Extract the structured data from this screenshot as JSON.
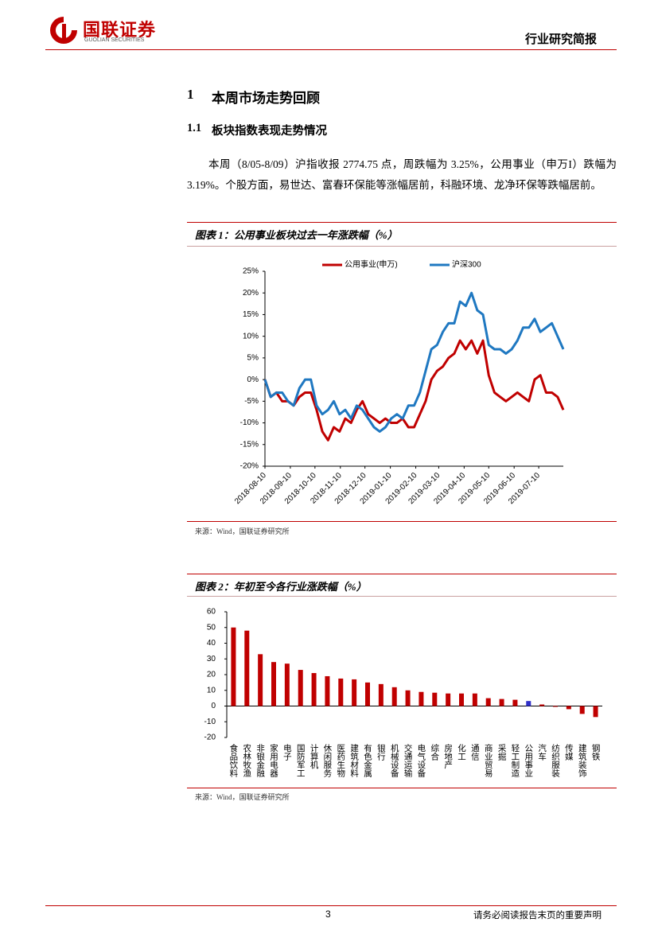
{
  "header": {
    "logo_text": "国联证券",
    "logo_sub": "GUOLIAN SECURITIES",
    "report_type": "行业研究简报"
  },
  "section": {
    "number": "1",
    "title": "本周市场走势回顾"
  },
  "subsection": {
    "number": "1.1",
    "title": "板块指数表现走势情况"
  },
  "paragraph": "本周（8/05-8/09）沪指收报 2774.75 点，周跌幅为 3.25%，公用事业（申万I）跌幅为 3.19%。个股方面，易世达、富春环保能等涨幅居前，科融环境、龙净环保等跌幅居前。",
  "chart_data": [
    {
      "type": "line",
      "title": "图表 1：公用事业板块过去一年涨跌幅（%）",
      "source": "来源：Wind，国联证券研究所",
      "x": [
        "2018-08-10",
        "2018-08-17",
        "2018-08-24",
        "2018-08-31",
        "2018-09-07",
        "2018-09-14",
        "2018-09-21",
        "2018-09-28",
        "2018-10-05",
        "2018-10-12",
        "2018-10-19",
        "2018-10-26",
        "2018-11-02",
        "2018-11-09",
        "2018-11-16",
        "2018-11-23",
        "2018-11-30",
        "2018-12-07",
        "2018-12-14",
        "2018-12-21",
        "2018-12-28",
        "2019-01-04",
        "2019-01-11",
        "2019-01-18",
        "2019-01-25",
        "2019-02-01",
        "2019-02-08",
        "2019-02-15",
        "2019-02-22",
        "2019-03-01",
        "2019-03-08",
        "2019-03-15",
        "2019-03-22",
        "2019-03-29",
        "2019-04-05",
        "2019-04-12",
        "2019-04-19",
        "2019-04-26",
        "2019-05-03",
        "2019-05-10",
        "2019-05-17",
        "2019-05-24",
        "2019-05-31",
        "2019-06-07",
        "2019-06-14",
        "2019-06-21",
        "2019-06-28",
        "2019-07-05",
        "2019-07-12",
        "2019-07-19",
        "2019-07-26",
        "2019-08-02",
        "2019-08-09"
      ],
      "series": [
        {
          "name": "公用事业(申万)",
          "color": "#c00000",
          "values": [
            0,
            -4,
            -3,
            -5,
            -5,
            -6,
            -4,
            -3,
            -3,
            -7,
            -12,
            -14,
            -11,
            -12,
            -9,
            -10,
            -7,
            -5,
            -8,
            -9,
            -10,
            -9,
            -10,
            -10,
            -9,
            -11,
            -11,
            -8,
            -5,
            0,
            2,
            3,
            5,
            6,
            9,
            7,
            9,
            6,
            9,
            1,
            -3,
            -4,
            -5,
            -4,
            -3,
            -4,
            -5,
            0,
            1,
            -3,
            -3,
            -4,
            -7
          ]
        },
        {
          "name": "沪深300",
          "color": "#1f78c1",
          "values": [
            0,
            -4,
            -3,
            -3,
            -5,
            -6,
            -2,
            0,
            0,
            -6,
            -8,
            -7,
            -5,
            -8,
            -7,
            -9,
            -6,
            -7,
            -9,
            -11,
            -12,
            -11,
            -9,
            -8,
            -9,
            -6,
            -6,
            -3,
            2,
            7,
            8,
            11,
            13,
            13,
            18,
            17,
            20,
            16,
            15,
            8,
            7,
            7,
            6,
            7,
            9,
            12,
            12,
            14,
            11,
            12,
            13,
            10,
            7
          ]
        }
      ],
      "xlim": [
        "2018-08-10",
        "2019-08-09"
      ],
      "xticks": [
        "2018-08-10",
        "2018-09-10",
        "2018-10-10",
        "2018-11-10",
        "2018-12-10",
        "2019-01-10",
        "2019-02-10",
        "2019-03-10",
        "2019-04-10",
        "2019-05-10",
        "2019-06-10",
        "2019-07-10"
      ],
      "ylim": [
        -20,
        25
      ],
      "yticks": [
        {
          "value": -20,
          "label": "-20%"
        },
        {
          "value": -15,
          "label": "-15%"
        },
        {
          "value": -10,
          "label": "-10%"
        },
        {
          "value": -5,
          "label": "-5%"
        },
        {
          "value": 0,
          "label": "0%"
        },
        {
          "value": 5,
          "label": "5%"
        },
        {
          "value": 10,
          "label": "10%"
        },
        {
          "value": 15,
          "label": "15%"
        },
        {
          "value": 20,
          "label": "20%"
        },
        {
          "value": 25,
          "label": "25%"
        }
      ],
      "legend": "top",
      "grid": false
    },
    {
      "type": "bar",
      "title": "图表 2：年初至今各行业涨跌幅（%）",
      "source": "来源：Wind，国联证券研究所",
      "categories": [
        "食品饮料",
        "农林牧渔",
        "非银金融",
        "家用电器",
        "电子",
        "国防军工",
        "计算机",
        "休闲服务",
        "医药生物",
        "建筑材料",
        "有色金属",
        "银行",
        "机械设备",
        "交通运输",
        "电气设备",
        "综合",
        "房地产",
        "化工",
        "通信",
        "商业贸易",
        "采掘",
        "轻工制造",
        "公用事业",
        "汽车",
        "纺织服装",
        "传媒",
        "建筑装饰",
        "钢铁"
      ],
      "values": [
        50,
        48,
        33,
        28,
        27,
        23,
        21,
        19,
        17.5,
        17,
        15,
        14,
        12,
        10,
        9,
        8.5,
        8,
        8,
        8,
        5,
        4.5,
        4,
        3.2,
        1,
        -0.5,
        -2,
        -5,
        -7
      ],
      "colors": [
        "#c00000",
        "#c00000",
        "#c00000",
        "#c00000",
        "#c00000",
        "#c00000",
        "#c00000",
        "#c00000",
        "#c00000",
        "#c00000",
        "#c00000",
        "#c00000",
        "#c00000",
        "#c00000",
        "#c00000",
        "#c00000",
        "#c00000",
        "#c00000",
        "#c00000",
        "#c00000",
        "#c00000",
        "#c00000",
        "#2e2ec8",
        "#c00000",
        "#c00000",
        "#c00000",
        "#c00000",
        "#c00000"
      ],
      "ylim": [
        -20,
        60
      ],
      "yticks": [
        -20,
        -10,
        0,
        10,
        20,
        30,
        40,
        50,
        60
      ],
      "grid": false
    }
  ],
  "footer": {
    "page": "3",
    "disclaimer": "请务必阅读报告末页的重要声明"
  }
}
